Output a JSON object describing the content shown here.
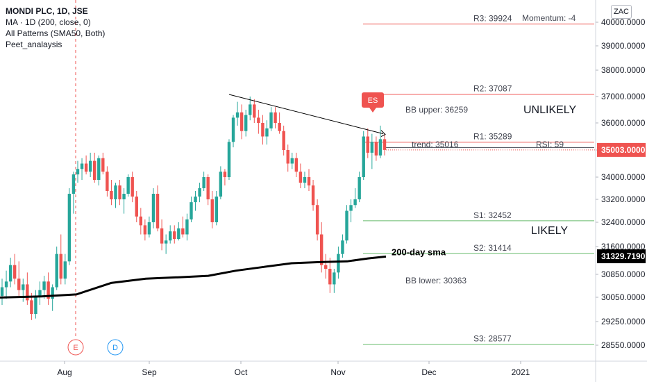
{
  "legend": {
    "title": "MONDI PLC, 1D, JSE",
    "ma": "MA · 1D (200, close, 0)",
    "patterns": "All Patterns (SMA50, Both)",
    "study": "Peet_analaysis"
  },
  "currency_badge": "ZAC",
  "colors": {
    "up": "#26a69a",
    "down": "#ef5350",
    "resistance": "#ef5350",
    "support": "#66bb6a",
    "sma": "#000000",
    "price_tag": "#ef5350",
    "sma_tag": "#000000",
    "grid_text": "#131722"
  },
  "chart_data": {
    "type": "candlestick",
    "y_ticks": [
      "40000.0000",
      "39000.0000",
      "38000.0000",
      "37000.0000",
      "36000.0000",
      "35000.0000",
      "34000.0000",
      "33200.0000",
      "32400.0000",
      "31600.0000",
      "30850.0000",
      "30050.0000",
      "29250.0000",
      "28550.0000"
    ],
    "x_ticks": [
      "Aug",
      "Sep",
      "Oct",
      "Nov",
      "Dec",
      "2021"
    ],
    "ylim": [
      28300,
      40500
    ],
    "last_price": {
      "value": 35003.0,
      "label": "35003.0000"
    },
    "sma_last": {
      "value": 31329.719,
      "label": "31329.7190"
    },
    "levels": [
      {
        "label": "R3: 39924",
        "value": 39924,
        "kind": "resistance"
      },
      {
        "label": "R2: 37087",
        "value": 37087,
        "kind": "resistance"
      },
      {
        "label": "R1: 35289",
        "value": 35289,
        "kind": "resistance"
      },
      {
        "label": "S1: 32452",
        "value": 32452,
        "kind": "support"
      },
      {
        "label": "S2: 31414",
        "value": 31414,
        "kind": "support"
      },
      {
        "label": "S3: 28577",
        "value": 28577,
        "kind": "support"
      }
    ],
    "annotations": {
      "momentum": "Momentum: -4",
      "bb_upper": "BB upper: 36259",
      "bb_lower": "BB lower: 30363",
      "trend": "trend: 35016",
      "rsi": "RSI: 59",
      "unlikely": "UNLIKELY",
      "likely": "LIKELY",
      "sma_label": "200-day sma",
      "es_flag": "ES",
      "event_e": "E",
      "event_d": "D"
    },
    "trendline": {
      "start": [
        "Oct 1",
        37080
      ],
      "end": [
        "Nov 17",
        35016
      ]
    },
    "candles": [
      {
        "o": 30100,
        "h": 30700,
        "l": 29800,
        "c": 30400
      },
      {
        "o": 30400,
        "h": 30950,
        "l": 30000,
        "c": 30600
      },
      {
        "o": 30600,
        "h": 31300,
        "l": 30400,
        "c": 31100
      },
      {
        "o": 31100,
        "h": 31400,
        "l": 30500,
        "c": 30700
      },
      {
        "o": 30700,
        "h": 31200,
        "l": 30100,
        "c": 30300
      },
      {
        "o": 30300,
        "h": 30700,
        "l": 29900,
        "c": 30500
      },
      {
        "o": 30500,
        "h": 30900,
        "l": 29800,
        "c": 29950
      },
      {
        "o": 29950,
        "h": 30200,
        "l": 29300,
        "c": 29500
      },
      {
        "o": 29500,
        "h": 30300,
        "l": 29350,
        "c": 30100
      },
      {
        "o": 30100,
        "h": 30600,
        "l": 29800,
        "c": 30300
      },
      {
        "o": 30300,
        "h": 30800,
        "l": 30000,
        "c": 30600
      },
      {
        "o": 30600,
        "h": 30900,
        "l": 29800,
        "c": 30000
      },
      {
        "o": 30000,
        "h": 30500,
        "l": 29600,
        "c": 30400
      },
      {
        "o": 30400,
        "h": 31600,
        "l": 30300,
        "c": 31400
      },
      {
        "o": 31400,
        "h": 32000,
        "l": 30500,
        "c": 30700
      },
      {
        "o": 30700,
        "h": 31400,
        "l": 30500,
        "c": 31200
      },
      {
        "o": 31200,
        "h": 33600,
        "l": 31100,
        "c": 33400
      },
      {
        "o": 33400,
        "h": 34200,
        "l": 32700,
        "c": 34100
      },
      {
        "o": 34100,
        "h": 34600,
        "l": 33800,
        "c": 34300
      },
      {
        "o": 34300,
        "h": 34700,
        "l": 33900,
        "c": 34500
      },
      {
        "o": 34500,
        "h": 34800,
        "l": 34100,
        "c": 34200
      },
      {
        "o": 34200,
        "h": 34900,
        "l": 34000,
        "c": 34600
      },
      {
        "o": 34600,
        "h": 34900,
        "l": 33800,
        "c": 33900
      },
      {
        "o": 33900,
        "h": 34800,
        "l": 33700,
        "c": 34700
      },
      {
        "o": 34700,
        "h": 34900,
        "l": 34100,
        "c": 34200
      },
      {
        "o": 34200,
        "h": 34400,
        "l": 33300,
        "c": 33500
      },
      {
        "o": 33500,
        "h": 33900,
        "l": 33000,
        "c": 33200
      },
      {
        "o": 33200,
        "h": 33800,
        "l": 32900,
        "c": 33700
      },
      {
        "o": 33700,
        "h": 33900,
        "l": 33000,
        "c": 33200
      },
      {
        "o": 33200,
        "h": 33600,
        "l": 32700,
        "c": 33400
      },
      {
        "o": 33400,
        "h": 34100,
        "l": 33300,
        "c": 34000
      },
      {
        "o": 34000,
        "h": 34200,
        "l": 33100,
        "c": 33300
      },
      {
        "o": 33300,
        "h": 33500,
        "l": 32400,
        "c": 32600
      },
      {
        "o": 32600,
        "h": 32900,
        "l": 32000,
        "c": 32300
      },
      {
        "o": 32300,
        "h": 32500,
        "l": 31800,
        "c": 32000
      },
      {
        "o": 32000,
        "h": 32600,
        "l": 31900,
        "c": 32400
      },
      {
        "o": 32400,
        "h": 33600,
        "l": 32200,
        "c": 33400
      },
      {
        "o": 33400,
        "h": 33700,
        "l": 32100,
        "c": 32200
      },
      {
        "o": 32200,
        "h": 32500,
        "l": 31500,
        "c": 31700
      },
      {
        "o": 31700,
        "h": 32000,
        "l": 31400,
        "c": 31800
      },
      {
        "o": 31800,
        "h": 32300,
        "l": 31700,
        "c": 32100
      },
      {
        "o": 32100,
        "h": 32300,
        "l": 31700,
        "c": 31850
      },
      {
        "o": 31850,
        "h": 32400,
        "l": 31800,
        "c": 32200
      },
      {
        "o": 32200,
        "h": 32600,
        "l": 31900,
        "c": 32000
      },
      {
        "o": 32000,
        "h": 32700,
        "l": 31800,
        "c": 32500
      },
      {
        "o": 32500,
        "h": 33300,
        "l": 32400,
        "c": 33100
      },
      {
        "o": 33100,
        "h": 33500,
        "l": 32800,
        "c": 33300
      },
      {
        "o": 33300,
        "h": 33800,
        "l": 33100,
        "c": 33600
      },
      {
        "o": 33600,
        "h": 34200,
        "l": 33500,
        "c": 34000
      },
      {
        "o": 34000,
        "h": 34100,
        "l": 33000,
        "c": 33200
      },
      {
        "o": 33200,
        "h": 33500,
        "l": 32200,
        "c": 32400
      },
      {
        "o": 32400,
        "h": 33500,
        "l": 32300,
        "c": 33300
      },
      {
        "o": 33300,
        "h": 34400,
        "l": 33200,
        "c": 34200
      },
      {
        "o": 34200,
        "h": 34300,
        "l": 33700,
        "c": 34000
      },
      {
        "o": 34000,
        "h": 35400,
        "l": 33900,
        "c": 35300
      },
      {
        "o": 35300,
        "h": 36300,
        "l": 35100,
        "c": 36200
      },
      {
        "o": 36200,
        "h": 36800,
        "l": 35900,
        "c": 36400
      },
      {
        "o": 36400,
        "h": 36700,
        "l": 35400,
        "c": 35700
      },
      {
        "o": 35700,
        "h": 36500,
        "l": 35500,
        "c": 36300
      },
      {
        "o": 36300,
        "h": 37000,
        "l": 36100,
        "c": 36700
      },
      {
        "o": 36700,
        "h": 36900,
        "l": 36000,
        "c": 36200
      },
      {
        "o": 36200,
        "h": 36500,
        "l": 35600,
        "c": 36000
      },
      {
        "o": 36000,
        "h": 36300,
        "l": 35200,
        "c": 35500
      },
      {
        "o": 35500,
        "h": 36100,
        "l": 35200,
        "c": 35800
      },
      {
        "o": 35800,
        "h": 36600,
        "l": 35700,
        "c": 36400
      },
      {
        "o": 36400,
        "h": 36600,
        "l": 35800,
        "c": 36000
      },
      {
        "o": 36000,
        "h": 36400,
        "l": 35600,
        "c": 35700
      },
      {
        "o": 35700,
        "h": 35900,
        "l": 34800,
        "c": 35000
      },
      {
        "o": 35000,
        "h": 35200,
        "l": 34200,
        "c": 34500
      },
      {
        "o": 34500,
        "h": 34900,
        "l": 34300,
        "c": 34700
      },
      {
        "o": 34700,
        "h": 34900,
        "l": 34000,
        "c": 34200
      },
      {
        "o": 34200,
        "h": 34500,
        "l": 33600,
        "c": 33800
      },
      {
        "o": 33800,
        "h": 34200,
        "l": 33600,
        "c": 34000
      },
      {
        "o": 34000,
        "h": 34300,
        "l": 33500,
        "c": 33700
      },
      {
        "o": 33700,
        "h": 33900,
        "l": 32800,
        "c": 33000
      },
      {
        "o": 33000,
        "h": 33200,
        "l": 31800,
        "c": 32000
      },
      {
        "o": 32000,
        "h": 32400,
        "l": 30900,
        "c": 31100
      },
      {
        "o": 31100,
        "h": 31400,
        "l": 30700,
        "c": 31000
      },
      {
        "o": 31000,
        "h": 31300,
        "l": 30200,
        "c": 30500
      },
      {
        "o": 30500,
        "h": 31000,
        "l": 30200,
        "c": 30900
      },
      {
        "o": 30900,
        "h": 31600,
        "l": 30700,
        "c": 31400
      },
      {
        "o": 31400,
        "h": 32000,
        "l": 31300,
        "c": 31800
      },
      {
        "o": 31800,
        "h": 33000,
        "l": 31700,
        "c": 32800
      },
      {
        "o": 32800,
        "h": 33200,
        "l": 32400,
        "c": 33000
      },
      {
        "o": 33000,
        "h": 33600,
        "l": 32900,
        "c": 33200
      },
      {
        "o": 33200,
        "h": 34200,
        "l": 33100,
        "c": 34000
      },
      {
        "o": 34000,
        "h": 35700,
        "l": 33900,
        "c": 35500
      },
      {
        "o": 35500,
        "h": 35800,
        "l": 34700,
        "c": 34900
      },
      {
        "o": 34900,
        "h": 35600,
        "l": 34300,
        "c": 35300
      },
      {
        "o": 35300,
        "h": 35500,
        "l": 34600,
        "c": 34800
      },
      {
        "o": 34800,
        "h": 35900,
        "l": 34700,
        "c": 35400
      },
      {
        "o": 35400,
        "h": 35600,
        "l": 34800,
        "c": 35003
      }
    ]
  }
}
